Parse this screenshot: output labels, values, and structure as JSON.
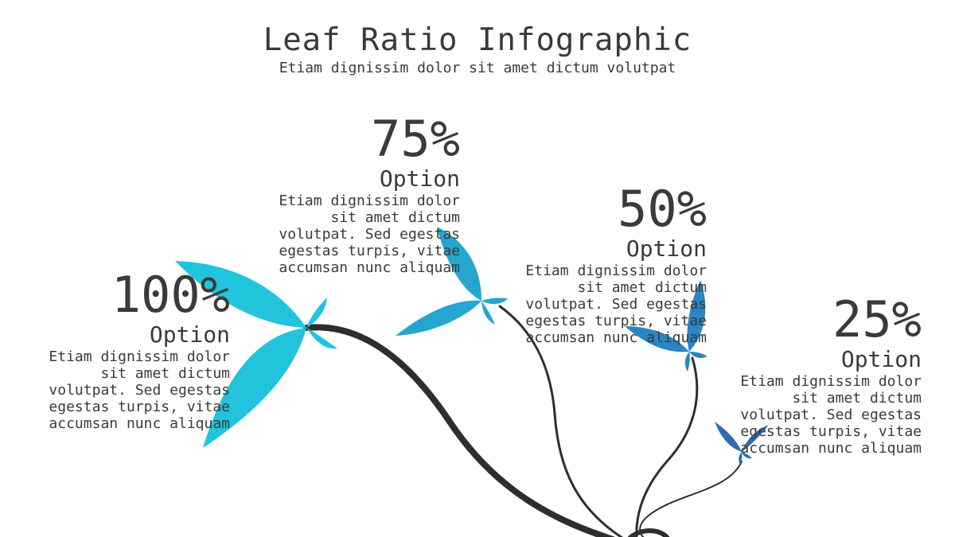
{
  "header": {
    "title": "Leaf Ratio Infographic",
    "subtitle": "Etiam dignissim dolor sit amet dictum volutpat"
  },
  "items": [
    {
      "percent": "100%",
      "value": 1.0,
      "label": "Option",
      "description": "Etiam dignissim dolor\nsit amet dictum\nvolutpat. Sed egestas\negestas turpis, vitae\naccumsan nunc aliquam",
      "color": "#21c4dc"
    },
    {
      "percent": "75%",
      "value": 0.75,
      "label": "Option",
      "description": "Etiam dignissim dolor\nsit amet dictum\nvolutpat. Sed egestas\negestas turpis, vitae\naccumsan nunc aliquam",
      "color": "#25a6cf"
    },
    {
      "percent": "50%",
      "value": 0.5,
      "label": "Option",
      "description": "Etiam dignissim dolor\nsit amet dictum\nvolutpat. Sed egestas\negestas turpis, vitae\naccumsan nunc aliquam",
      "color": "#2a86c2"
    },
    {
      "percent": "25%",
      "value": 0.25,
      "label": "Option",
      "description": "Etiam dignissim dolor\nsit amet dictum\nvolutpat. Sed egestas\negestas turpis, vitae\naccumsan nunc aliquam",
      "color": "#2d6cb3"
    }
  ],
  "colors": {
    "stem": "#2e2e2e",
    "text": "#3a3a3a",
    "background": "#ffffff"
  }
}
